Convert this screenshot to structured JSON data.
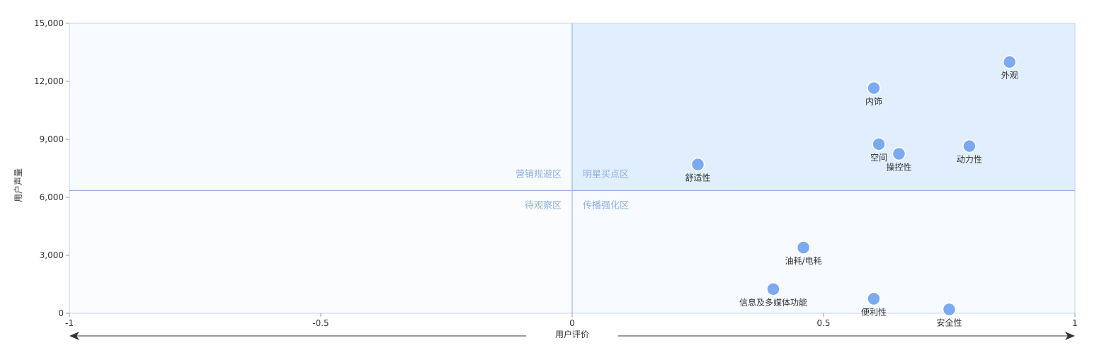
{
  "chart_data": {
    "type": "scatter",
    "xlabel": "用户评价",
    "ylabel": "用户声量",
    "xlim": [
      -1,
      1
    ],
    "ylim": [
      0,
      15000
    ],
    "x_ticks": [
      "-1",
      "-0.5",
      "0",
      "0.5",
      "1"
    ],
    "y_ticks": [
      "0",
      "3,000",
      "6,000",
      "9,000",
      "12,000",
      "15,000"
    ],
    "divider": {
      "x": 0,
      "y": 6350
    },
    "zones": {
      "top_left": "营销规避区",
      "top_right": "明星买点区",
      "bottom_left": "待观察区",
      "bottom_right": "传播强化区"
    },
    "points": [
      {
        "label": "外观",
        "x": 0.87,
        "y": 13000
      },
      {
        "label": "内饰",
        "x": 0.6,
        "y": 11650
      },
      {
        "label": "空间",
        "x": 0.61,
        "y": 8750
      },
      {
        "label": "操控性",
        "x": 0.65,
        "y": 8250
      },
      {
        "label": "动力性",
        "x": 0.79,
        "y": 8650
      },
      {
        "label": "舒适性",
        "x": 0.25,
        "y": 7700
      },
      {
        "label": "油耗/电耗",
        "x": 0.46,
        "y": 3400
      },
      {
        "label": "信息及多媒体功能",
        "x": 0.4,
        "y": 1250
      },
      {
        "label": "便利性",
        "x": 0.6,
        "y": 750
      },
      {
        "label": "安全性",
        "x": 0.75,
        "y": 200
      }
    ],
    "colors": {
      "point": "#7baaf0",
      "top_right_fill": "#e1eefd",
      "other_fill": "#f7faff",
      "bottom_left_fill": "#fbfcfe",
      "divider": "#8ea8d8",
      "zone_text": "#8fb0d8"
    }
  }
}
